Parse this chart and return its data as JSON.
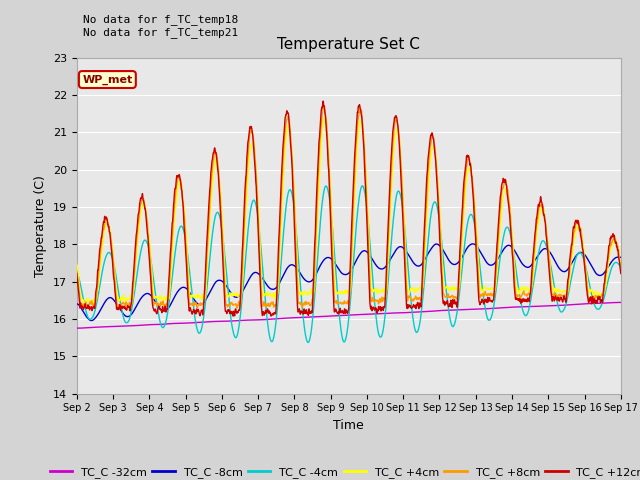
{
  "title": "Temperature Set C",
  "xlabel": "Time",
  "ylabel": "Temperature (C)",
  "ylim": [
    14.0,
    23.0
  ],
  "yticks": [
    14.0,
    15.0,
    16.0,
    17.0,
    18.0,
    19.0,
    20.0,
    21.0,
    22.0,
    23.0
  ],
  "annotation_text": "No data for f_TC_temp18\nNo data for f_TC_temp21",
  "wp_met_label": "WP_met",
  "legend_entries": [
    "TC_C -32cm",
    "TC_C -8cm",
    "TC_C -4cm",
    "TC_C +4cm",
    "TC_C +8cm",
    "TC_C +12cm"
  ],
  "legend_colors": [
    "#cc00cc",
    "#0000cc",
    "#00cccc",
    "#ffff00",
    "#ff9900",
    "#cc0000"
  ],
  "fig_bg_color": "#d4d4d4",
  "plot_bg_color": "#e8e8e8",
  "grid_color": "#ffffff",
  "xtick_labels": [
    "Sep 2",
    "Sep 3",
    "Sep 4",
    "Sep 5",
    "Sep 6",
    "Sep 7",
    "Sep 8",
    "Sep 9",
    "Sep 10",
    "Sep 11",
    "Sep 12Sep",
    "Sep 13",
    "Sep 14",
    "Sep 15",
    "Sep 16",
    "Sep 17"
  ]
}
